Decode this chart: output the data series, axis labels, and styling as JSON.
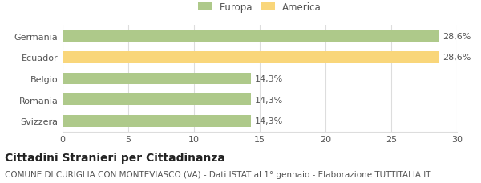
{
  "categories": [
    "Svizzera",
    "Romania",
    "Belgio",
    "Ecuador",
    "Germania"
  ],
  "values": [
    14.3,
    14.3,
    14.3,
    28.6,
    28.6
  ],
  "colors": [
    "#aec98a",
    "#aec98a",
    "#aec98a",
    "#f9d67a",
    "#aec98a"
  ],
  "bar_labels": [
    "14,3%",
    "14,3%",
    "14,3%",
    "28,6%",
    "28,6%"
  ],
  "legend_labels": [
    "Europa",
    "America"
  ],
  "legend_colors": [
    "#aec98a",
    "#f9d67a"
  ],
  "xlim": [
    0,
    30
  ],
  "xticks": [
    0,
    5,
    10,
    15,
    20,
    25,
    30
  ],
  "title": "Cittadini Stranieri per Cittadinanza",
  "subtitle": "COMUNE DI CURIGLIA CON MONTEVIASCO (VA) - Dati ISTAT al 1° gennaio - Elaborazione TUTTITALIA.IT",
  "title_fontsize": 10,
  "subtitle_fontsize": 7.5,
  "label_fontsize": 8,
  "tick_fontsize": 8,
  "legend_fontsize": 8.5,
  "bar_height": 0.55,
  "background_color": "#ffffff",
  "grid_color": "#dddddd",
  "text_color": "#555555",
  "title_color": "#222222"
}
